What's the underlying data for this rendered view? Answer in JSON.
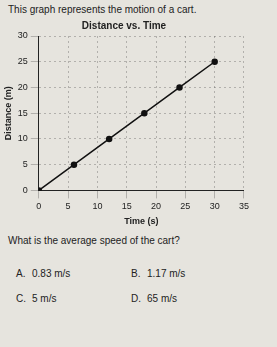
{
  "header": "This graph represents the motion of a cart.",
  "chart_data": {
    "type": "line",
    "title": "Distance vs. Time",
    "x_label": "Time (s)",
    "y_label": "Distance (m)",
    "x": [
      0,
      6,
      12,
      18,
      24,
      30
    ],
    "values": [
      0,
      5,
      10,
      15,
      20,
      25
    ],
    "color": "#111111",
    "marker": "circle",
    "xlim": [
      0,
      35
    ],
    "xticks": [
      0,
      5,
      10,
      15,
      20,
      25,
      30,
      35
    ],
    "ylim": [
      0,
      30
    ],
    "yticks": [
      0,
      5,
      10,
      15,
      20,
      25,
      30
    ],
    "grid": true
  },
  "question": "What is the average speed of the cart?",
  "choices": [
    {
      "letter": "A.",
      "text": "0.83 m/s"
    },
    {
      "letter": "B.",
      "text": "1.17 m/s"
    },
    {
      "letter": "C.",
      "text": "5 m/s"
    },
    {
      "letter": "D.",
      "text": "65 m/s"
    }
  ]
}
